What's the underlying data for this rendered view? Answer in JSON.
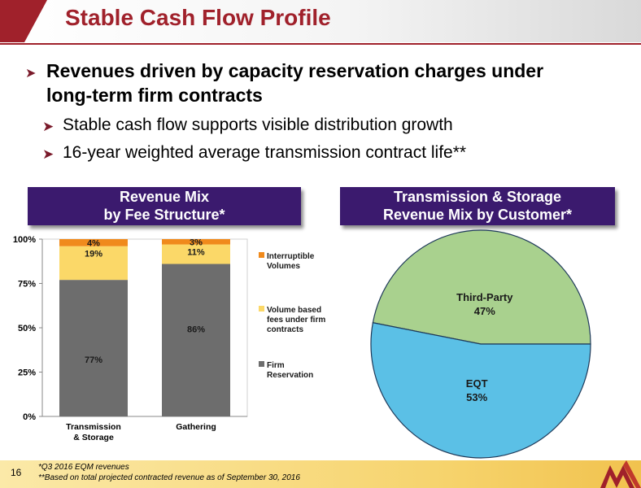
{
  "slide": {
    "title": "Stable Cash Flow Profile",
    "page_number": "16",
    "bullets": [
      {
        "level": 1,
        "text": [
          "Revenues driven by capacity reservation charges under",
          "long-term firm contracts"
        ]
      },
      {
        "level": 2,
        "text": "Stable cash flow supports visible distribution growth"
      },
      {
        "level": 2,
        "text": "16-year weighted average transmission contract life**"
      }
    ],
    "footnotes": [
      "*Q3 2016 EQM revenues",
      "**Based on total projected contracted revenue as of September 30, 2016"
    ],
    "colors": {
      "title": "#a0212b",
      "header_bar": "#a0212b",
      "section_box": "#3b1a6e",
      "footer": "#f6d36c"
    }
  },
  "chart_data": [
    {
      "type": "bar",
      "stacked": true,
      "title": [
        "Revenue Mix",
        "by Fee Structure*"
      ],
      "categories": [
        "Transmission\n& Storage",
        "Gathering"
      ],
      "ylim": [
        0,
        100
      ],
      "yticks": [
        "0%",
        "25%",
        "50%",
        "75%",
        "100%"
      ],
      "ytick_values": [
        0,
        25,
        50,
        75,
        100
      ],
      "series": [
        {
          "name": "Firm Reservation",
          "legend_lines": [
            "Firm",
            "Reservation"
          ],
          "values": [
            77,
            86
          ],
          "labels": [
            "77%",
            "86%"
          ],
          "color": "#6d6d6d"
        },
        {
          "name": "Volume based fees under firm contracts",
          "legend_lines": [
            "Volume based",
            "fees under firm",
            "contracts"
          ],
          "values": [
            19,
            11
          ],
          "labels": [
            "19%",
            "11%"
          ],
          "color": "#fbd868"
        },
        {
          "name": "Interruptible Volumes",
          "legend_lines": [
            "Interruptible",
            "Volumes"
          ],
          "values": [
            4,
            3
          ],
          "labels": [
            "4%",
            "3%"
          ],
          "color": "#f08a1c"
        }
      ],
      "legend_position": "right"
    },
    {
      "type": "pie",
      "title": [
        "Transmission & Storage",
        "Revenue Mix by Customer*"
      ],
      "slices": [
        {
          "label": "Third-Party",
          "value": 47,
          "value_label": "47%",
          "color": "#a9d18e"
        },
        {
          "label": "EQT",
          "value": 53,
          "value_label": "53%",
          "color": "#5bc0e6"
        }
      ]
    }
  ]
}
